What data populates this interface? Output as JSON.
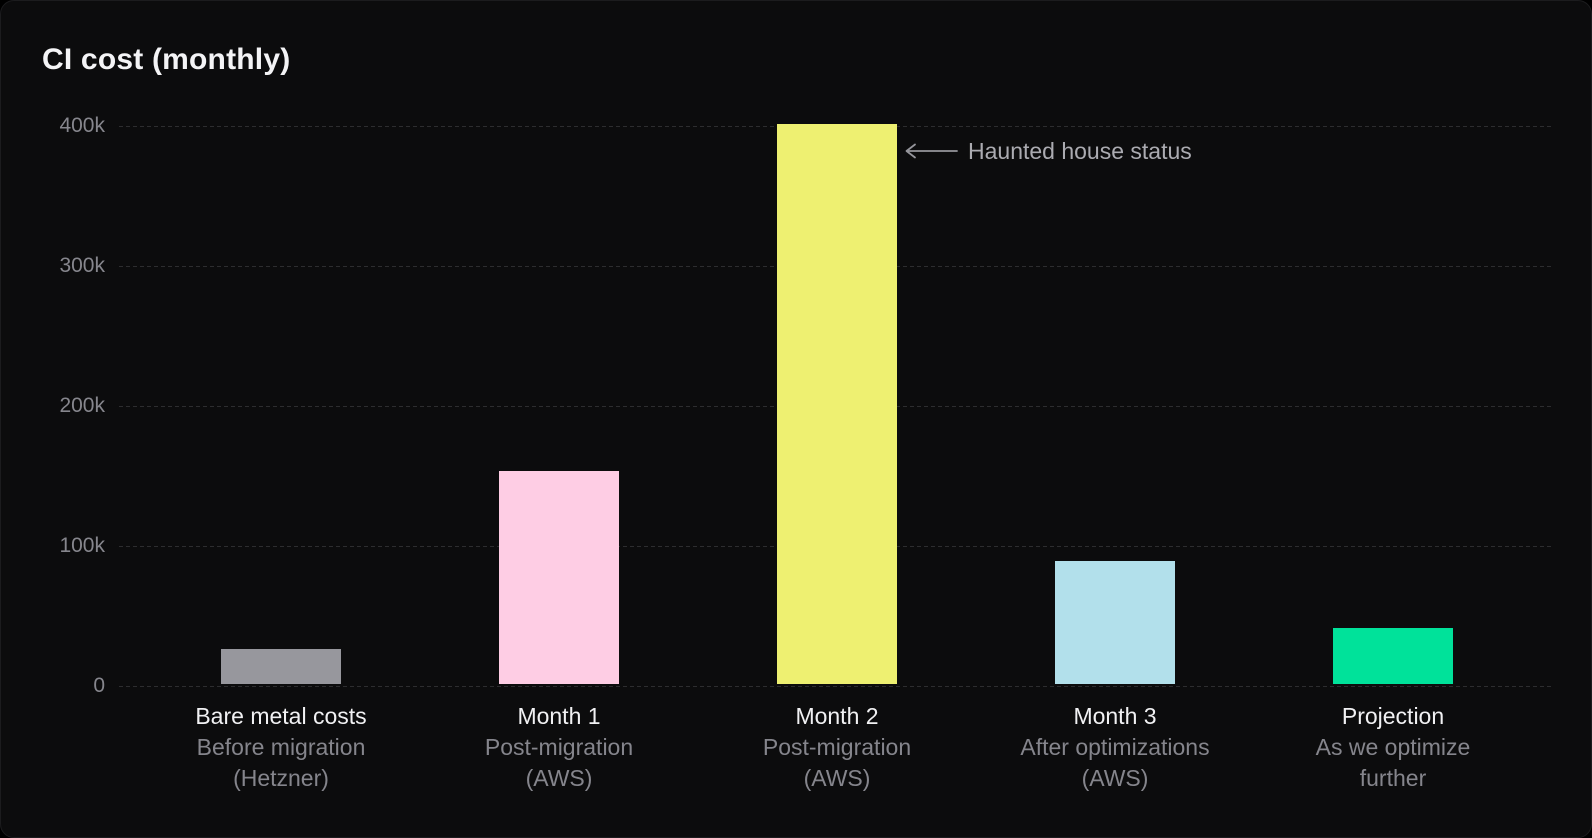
{
  "chart": {
    "title": "CI cost (monthly)"
  },
  "chart_data": {
    "type": "bar",
    "title": "CI cost (monthly)",
    "ylabel": "",
    "xlabel": "",
    "ylim": [
      0,
      400000
    ],
    "yticks": [
      "400k",
      "300k",
      "200k",
      "100k",
      "0"
    ],
    "grid": "horizontal-dashed",
    "legend": "none",
    "bars": [
      {
        "label": "Bare metal costs",
        "sublabels": [
          "Before migration",
          "(Hetzner)"
        ],
        "value": 25000,
        "value_display": "25k",
        "color": "#97979d"
      },
      {
        "label": "Month 1",
        "sublabels": [
          "Post-migration",
          "(AWS)"
        ],
        "value": 152000,
        "value_display": "152k",
        "color": "#fecde4"
      },
      {
        "label": "Month 2",
        "sublabels": [
          "Post-migration",
          "(AWS)"
        ],
        "value": 400000,
        "value_display": "400k",
        "color": "#eef071"
      },
      {
        "label": "Month 3",
        "sublabels": [
          "After optimizations",
          "(AWS)"
        ],
        "value": 88000,
        "value_display": "88k",
        "color": "#b2e0eb"
      },
      {
        "label": "Projection",
        "sublabels": [
          "As we optimize",
          "further"
        ],
        "value": 40000,
        "value_display": "40k",
        "color": "#00e29a"
      }
    ],
    "annotation": {
      "text": "Haunted house status",
      "arrow_direction": "left",
      "points_to": "Month 2"
    }
  },
  "colors": {
    "background": "#0c0c0d",
    "gridline": "#2d2d2f",
    "title_text": "#f4f4f6",
    "tick_text": "#86868d",
    "label_primary": "#f1f1f3",
    "label_secondary": "#85858c",
    "annotation_text": "#ababb1",
    "arrow": "#95959b"
  }
}
